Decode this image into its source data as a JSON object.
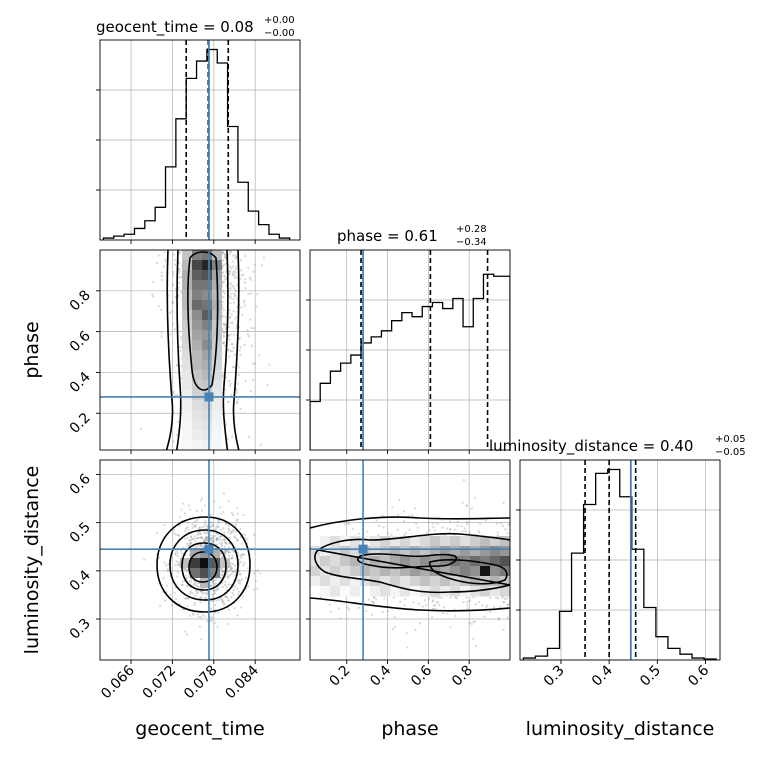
{
  "chart_data": {
    "type": "corner",
    "parameters": [
      "geocent_time",
      "phase",
      "luminosity_distance"
    ],
    "titles": [
      {
        "param": "geocent_time",
        "main": "geocent_time = 0.08",
        "upper": "+0.00",
        "lower": "−0.00"
      },
      {
        "param": "phase",
        "main": "phase = 0.61",
        "upper": "+0.28",
        "lower": "−0.34"
      },
      {
        "param": "luminosity_distance",
        "main": "luminosity_distance = 0.40",
        "upper": "+0.05",
        "lower": "−0.05"
      }
    ],
    "axes": {
      "geocent_time": {
        "range": [
          0.0615,
          0.0905
        ],
        "ticks": [
          0.066,
          0.072,
          0.078,
          0.084
        ],
        "tick_labels": [
          "0.066",
          "0.072",
          "0.078",
          "0.084"
        ]
      },
      "phase": {
        "range": [
          0.02,
          1.0
        ],
        "ticks": [
          0.2,
          0.4,
          0.6,
          0.8
        ],
        "tick_labels": [
          "0.2",
          "0.4",
          "0.6",
          "0.8"
        ]
      },
      "luminosity_distance": {
        "range": [
          0.215,
          0.63
        ],
        "ticks": [
          0.3,
          0.4,
          0.5,
          0.6
        ],
        "tick_labels": [
          "0.3",
          "0.4",
          "0.5",
          "0.6"
        ]
      }
    },
    "axis_labels": {
      "x": [
        "geocent_time",
        "phase",
        "luminosity_distance"
      ],
      "y": [
        "phase",
        "luminosity_distance"
      ]
    },
    "injection": {
      "geocent_time": 0.0773,
      "phase": 0.28,
      "luminosity_distance": 0.445
    },
    "quantiles": {
      "geocent_time": [
        0.074,
        0.0772,
        0.0801
      ],
      "phase": [
        0.27,
        0.61,
        0.89
      ],
      "luminosity_distance": [
        0.35,
        0.4,
        0.455
      ]
    },
    "histograms": {
      "geocent_time": {
        "edges": [
          0.062,
          0.0635,
          0.065,
          0.0665,
          0.068,
          0.0695,
          0.071,
          0.0725,
          0.074,
          0.0755,
          0.077,
          0.0785,
          0.08,
          0.0815,
          0.083,
          0.0845,
          0.086,
          0.0875,
          0.089
        ],
        "counts": [
          0.01,
          0.02,
          0.03,
          0.06,
          0.1,
          0.17,
          0.38,
          0.63,
          0.84,
          0.93,
          0.99,
          0.92,
          0.59,
          0.3,
          0.15,
          0.08,
          0.03,
          0.01
        ]
      },
      "phase": {
        "edges": [
          0.02,
          0.07,
          0.12,
          0.17,
          0.22,
          0.27,
          0.32,
          0.37,
          0.42,
          0.47,
          0.52,
          0.57,
          0.62,
          0.67,
          0.72,
          0.77,
          0.82,
          0.87,
          0.92,
          1.0
        ],
        "counts": [
          0.24,
          0.33,
          0.39,
          0.43,
          0.47,
          0.53,
          0.56,
          0.59,
          0.64,
          0.68,
          0.66,
          0.71,
          0.73,
          0.7,
          0.75,
          0.61,
          0.75,
          0.87,
          0.86
        ],
        "ylim": [
          0,
          0.99
        ]
      },
      "luminosity_distance": {
        "edges": [
          0.222,
          0.247,
          0.272,
          0.297,
          0.322,
          0.347,
          0.372,
          0.397,
          0.422,
          0.447,
          0.472,
          0.497,
          0.522,
          0.547,
          0.572,
          0.597,
          0.622
        ],
        "counts": [
          0.01,
          0.02,
          0.06,
          0.25,
          0.55,
          0.8,
          0.96,
          0.98,
          0.84,
          0.57,
          0.27,
          0.12,
          0.06,
          0.03,
          0.01,
          0.005
        ]
      }
    },
    "density_2d": {
      "phase_vs_geocent_time": {
        "x_mean": 0.0772,
        "x_sd": 0.0028,
        "y_range": [
          0.0,
          1.0
        ],
        "density_trend": "increasing-with-phase"
      },
      "luminosity_distance_vs_geocent_time": {
        "x_mean": 0.0773,
        "x_sd": 0.0025,
        "y_mean": 0.415,
        "y_sd": 0.05
      },
      "luminosity_distance_vs_phase": {
        "y_mean": 0.41,
        "y_sd": 0.05,
        "density_trend": "increasing-with-phase"
      }
    },
    "grid": true,
    "colors": {
      "injection": "#4682b4",
      "hist": "#000000",
      "grid": "#b0b0b0",
      "samples": "#8c8c8c"
    }
  }
}
